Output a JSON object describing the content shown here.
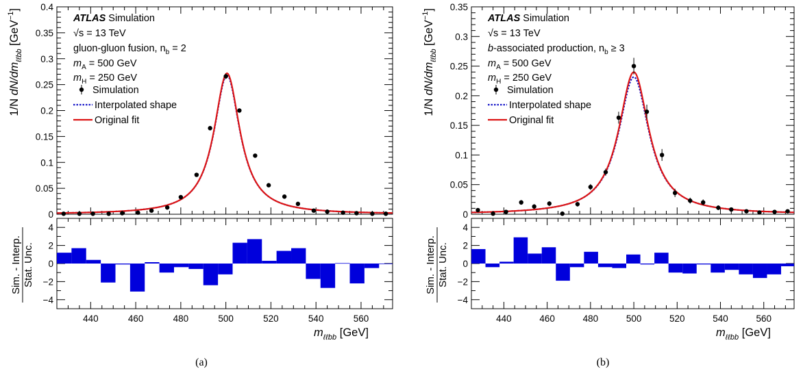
{
  "chart_data": [
    {
      "type": "line",
      "caption": "(a)",
      "experiment": "ATLAS",
      "experiment_suffix": "Simulation",
      "sqrt_s": "√s = 13 TeV",
      "process": "gluon-gluon fusion, n",
      "nb_label": "b",
      "nb_text": " = 2",
      "mA_label": "A",
      "mA_text": " = 500 GeV",
      "mH_label": "H",
      "mH_text": " = 250 GeV",
      "legend": [
        "Simulation",
        "Interpolated shape",
        "Original fit"
      ],
      "ylabel_main": "1/N  dN/dm",
      "ylabel_sub": "ℓℓbb",
      "ylabel_unit": "[GeV",
      "ylabel_pow": "−1",
      "ylabel_close": "]",
      "ratio_ylabel_top": "Sim. - Interp.",
      "ratio_ylabel_bottom": "Stat. Unc.",
      "xlabel_main": "m",
      "xlabel_sub": "ℓℓbb",
      "xlabel_unit": "[GeV]",
      "xlim": [
        425,
        574
      ],
      "ylim": [
        0,
        0.4
      ],
      "ratio_ylim": [
        -5,
        5
      ],
      "x_ticks": [
        440,
        460,
        480,
        500,
        520,
        540,
        560
      ],
      "y_ticks": [
        0,
        0.05,
        0.1,
        0.15,
        0.2,
        0.25,
        0.3,
        0.35,
        0.4
      ],
      "y_tick_labels": [
        "0",
        "0.05",
        "0.1",
        "0.15",
        "0.2",
        "0.25",
        "0.3",
        "0.35",
        "0.4"
      ],
      "ratio_ticks": [
        -4,
        -2,
        0,
        2,
        4
      ],
      "ratio_tick_labels": [
        "−4",
        "−2",
        "0",
        "2",
        "4"
      ],
      "shape": {
        "peak_x": 500.5,
        "peak_y": 0.272,
        "gamma": 7.0,
        "ratio_interp_to_fit": 0.985
      },
      "points": {
        "x": [
          428,
          435,
          441,
          448,
          454,
          461,
          467,
          474,
          480,
          487,
          493,
          500,
          506,
          513,
          519,
          526,
          532,
          539,
          545,
          552,
          558,
          565,
          571
        ],
        "y": [
          0.001,
          0.001,
          0.001,
          0.001,
          0.002,
          0.003,
          0.007,
          0.013,
          0.033,
          0.076,
          0.166,
          0.266,
          0.2,
          0.113,
          0.056,
          0.034,
          0.02,
          0.007,
          0.005,
          0.003,
          0.002,
          0.001,
          0.001
        ],
        "err": [
          0.0005,
          0.0005,
          0.0005,
          0.0005,
          0.0006,
          0.0008,
          0.001,
          0.0015,
          0.002,
          0.003,
          0.004,
          0.005,
          0.004,
          0.003,
          0.002,
          0.0018,
          0.0015,
          0.001,
          0.0008,
          0.0006,
          0.0005,
          0.0005,
          0.0005
        ]
      },
      "ratio_bins": {
        "edges": [
          425,
          431.5,
          438,
          444.5,
          451,
          457.5,
          464,
          470.5,
          477,
          483.5,
          490,
          496.5,
          503,
          509.5,
          516,
          522.5,
          529,
          535.5,
          542,
          548.5,
          555,
          561.5,
          568,
          574
        ],
        "values": [
          1.2,
          1.7,
          0.4,
          -2.1,
          -0.1,
          -3.1,
          0.15,
          -1.0,
          -0.4,
          -0.6,
          -2.4,
          -1.2,
          2.3,
          2.7,
          0.3,
          1.4,
          1.7,
          -1.7,
          -2.7,
          0.05,
          -2.2,
          -0.5,
          0.0
        ]
      }
    },
    {
      "type": "line",
      "caption": "(b)",
      "experiment": "ATLAS",
      "experiment_suffix": "Simulation",
      "sqrt_s": "√s = 13 TeV",
      "process": "-associated production, n",
      "process_prefix": "b",
      "nb_label": "b",
      "nb_text": " ≥ 3",
      "mA_label": "A",
      "mA_text": " = 500 GeV",
      "mH_label": "H",
      "mH_text": " = 250 GeV",
      "legend": [
        "Simulation",
        "Interpolated shape",
        "Original fit"
      ],
      "ylabel_main": "1/N  dN/dm",
      "ylabel_sub": "ℓℓbb",
      "ylabel_unit": "[GeV",
      "ylabel_pow": "−1",
      "ylabel_close": "]",
      "ratio_ylabel_top": "Sim. - Interp.",
      "ratio_ylabel_bottom": "Stat. Unc.",
      "xlabel_main": "m",
      "xlabel_sub": "ℓℓbb",
      "xlabel_unit": "[GeV]",
      "xlim": [
        425,
        574
      ],
      "ylim": [
        0,
        0.35
      ],
      "ratio_ylim": [
        -5,
        5
      ],
      "x_ticks": [
        440,
        460,
        480,
        500,
        520,
        540,
        560
      ],
      "y_ticks": [
        0,
        0.05,
        0.1,
        0.15,
        0.2,
        0.25,
        0.3,
        0.35
      ],
      "y_tick_labels": [
        "0",
        "0.05",
        "0.1",
        "0.15",
        "0.2",
        "0.25",
        "0.3",
        "0.35"
      ],
      "ratio_ticks": [
        -4,
        -2,
        0,
        2,
        4
      ],
      "ratio_tick_labels": [
        "−4",
        "−2",
        "0",
        "2",
        "4"
      ],
      "shape": {
        "peak_x": 500.0,
        "peak_y": 0.24,
        "gamma": 8.5,
        "ratio_interp_to_fit": 0.965
      },
      "points": {
        "x": [
          428,
          435,
          441,
          448,
          454,
          461,
          467,
          474,
          480,
          487,
          493,
          500,
          506,
          513,
          519,
          526,
          532,
          539,
          545,
          552,
          558,
          565,
          571
        ],
        "y": [
          0.007,
          0.001,
          0.004,
          0.02,
          0.013,
          0.018,
          0.001,
          0.017,
          0.046,
          0.071,
          0.163,
          0.25,
          0.173,
          0.1,
          0.036,
          0.023,
          0.02,
          0.011,
          0.008,
          0.005,
          0.003,
          0.004,
          0.005
        ],
        "err": [
          0.003,
          0.002,
          0.003,
          0.004,
          0.004,
          0.004,
          0.003,
          0.004,
          0.005,
          0.006,
          0.01,
          0.014,
          0.012,
          0.01,
          0.007,
          0.005,
          0.005,
          0.004,
          0.003,
          0.003,
          0.003,
          0.003,
          0.003
        ]
      },
      "ratio_bins": {
        "edges": [
          425,
          431.5,
          438,
          444.5,
          451,
          457.5,
          464,
          470.5,
          477,
          483.5,
          490,
          496.5,
          503,
          509.5,
          516,
          522.5,
          529,
          535.5,
          542,
          548.5,
          555,
          561.5,
          568,
          574
        ],
        "values": [
          1.6,
          -0.4,
          0.2,
          2.9,
          1.1,
          1.8,
          -1.9,
          -0.4,
          1.3,
          -0.4,
          -0.5,
          1.0,
          -0.1,
          1.2,
          -1.0,
          -1.1,
          -0.1,
          -1.0,
          -0.7,
          -1.2,
          -1.6,
          -1.2,
          -0.3
        ]
      }
    }
  ]
}
